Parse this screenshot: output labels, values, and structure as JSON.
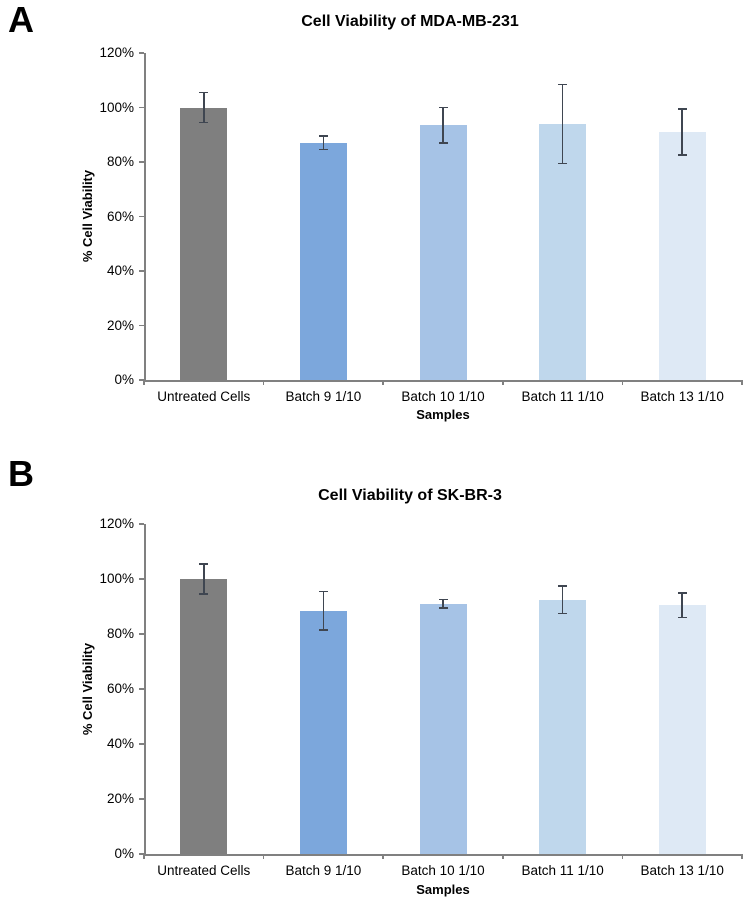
{
  "panels": [
    {
      "label": "A"
    },
    {
      "label": "B"
    }
  ],
  "chart_data": [
    {
      "type": "bar",
      "title": "Cell Viability of MDA-MB-231",
      "xlabel": "Samples",
      "ylabel": "% Cell Viability",
      "ylim": [
        0,
        120
      ],
      "ytick_step": 20,
      "ytick_labels": [
        "0%",
        "20%",
        "40%",
        "60%",
        "80%",
        "100%",
        "120%"
      ],
      "grid": false,
      "legend": "none",
      "categories": [
        "Untreated Cells",
        "Batch 9 1/10",
        "Batch 10 1/10",
        "Batch 11 1/10",
        "Batch 13 1/10"
      ],
      "values_percent": [
        100,
        87,
        93.5,
        94,
        91
      ],
      "error_percent": [
        5.5,
        2.5,
        6.5,
        14.5,
        8.5
      ],
      "bar_colors": [
        "#7F7F7F",
        "#7CA7DC",
        "#A6C3E6",
        "#BFD7EC",
        "#DEE9F5"
      ]
    },
    {
      "type": "bar",
      "title": "Cell Viability of SK-BR-3",
      "xlabel": "Samples",
      "ylabel": "% Cell Viability",
      "ylim": [
        0,
        120
      ],
      "ytick_step": 20,
      "ytick_labels": [
        "0%",
        "20%",
        "40%",
        "60%",
        "80%",
        "100%",
        "120%"
      ],
      "grid": false,
      "legend": "none",
      "categories": [
        "Untreated Cells",
        "Batch 9 1/10",
        "Batch 10 1/10",
        "Batch 11 1/10",
        "Batch 13 1/10"
      ],
      "values_percent": [
        100,
        88.5,
        91,
        92.5,
        90.5
      ],
      "error_percent": [
        5.5,
        7,
        1.5,
        5,
        4.5
      ],
      "bar_colors": [
        "#7F7F7F",
        "#7CA7DC",
        "#A6C3E6",
        "#BFD7EC",
        "#DEE9F5"
      ]
    }
  ],
  "style_colors": {
    "axis": "#808080",
    "error_bar": "#3F4651",
    "text": "#000000"
  }
}
